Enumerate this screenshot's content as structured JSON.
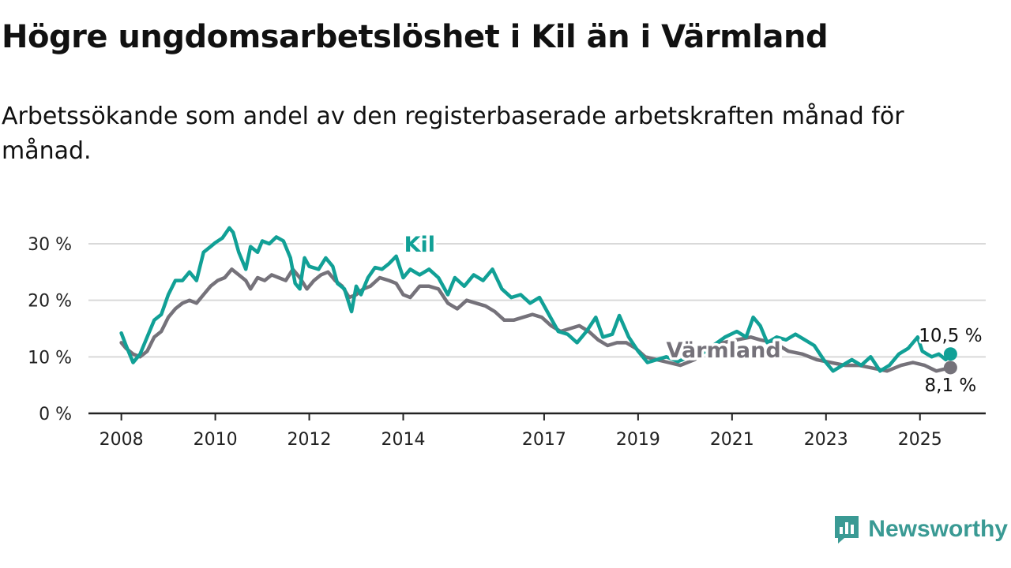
{
  "header": {
    "title": "Högre ungdomsarbetslöshet i Kil än i Värmland",
    "subtitle": "Arbetssökande som andel av den registerbaserade arbetskraften månad för månad."
  },
  "brand": {
    "name": "Newsworthy",
    "icon": "newsworthy-logo-icon",
    "color": "#3a9a94"
  },
  "colors": {
    "kil": "#11a096",
    "varmland": "#75727a",
    "grid": "#d9d9d9",
    "axis": "#222222"
  },
  "chart_data": {
    "type": "line",
    "x_unit": "year",
    "xlim": [
      2007.3,
      2026.4
    ],
    "ylim": [
      0,
      30
    ],
    "yticks": [
      0,
      10,
      20,
      30
    ],
    "ytick_labels": [
      "0 %",
      "10 %",
      "20 %",
      "30 %"
    ],
    "xticks": [
      2008,
      2010,
      2012,
      2014,
      2017,
      2019,
      2021,
      2023,
      2025
    ],
    "xtick_labels": [
      "2008",
      "2010",
      "2012",
      "2014",
      "2017",
      "2019",
      "2021",
      "2023",
      "2025"
    ],
    "grid": true,
    "series": [
      {
        "name": "Kil",
        "end_label": "10,5 %",
        "points": [
          [
            2008.0,
            14.2
          ],
          [
            2008.1,
            12.0
          ],
          [
            2008.25,
            9.0
          ],
          [
            2008.4,
            10.5
          ],
          [
            2008.55,
            13.5
          ],
          [
            2008.7,
            16.5
          ],
          [
            2008.85,
            17.5
          ],
          [
            2009.0,
            21.0
          ],
          [
            2009.15,
            23.5
          ],
          [
            2009.3,
            23.5
          ],
          [
            2009.45,
            25.0
          ],
          [
            2009.6,
            23.5
          ],
          [
            2009.75,
            28.5
          ],
          [
            2009.9,
            29.5
          ],
          [
            2010.0,
            30.2
          ],
          [
            2010.15,
            31.0
          ],
          [
            2010.3,
            32.8
          ],
          [
            2010.38,
            32.0
          ],
          [
            2010.5,
            28.5
          ],
          [
            2010.65,
            25.5
          ],
          [
            2010.75,
            29.5
          ],
          [
            2010.9,
            28.5
          ],
          [
            2011.0,
            30.5
          ],
          [
            2011.15,
            30.0
          ],
          [
            2011.3,
            31.2
          ],
          [
            2011.45,
            30.5
          ],
          [
            2011.6,
            27.5
          ],
          [
            2011.7,
            23.0
          ],
          [
            2011.8,
            22.0
          ],
          [
            2011.9,
            27.5
          ],
          [
            2012.0,
            26.0
          ],
          [
            2012.2,
            25.5
          ],
          [
            2012.35,
            27.5
          ],
          [
            2012.5,
            26.0
          ],
          [
            2012.6,
            23.0
          ],
          [
            2012.75,
            22.0
          ],
          [
            2012.9,
            18.0
          ],
          [
            2013.0,
            22.5
          ],
          [
            2013.1,
            21.0
          ],
          [
            2013.25,
            24.0
          ],
          [
            2013.4,
            25.8
          ],
          [
            2013.55,
            25.5
          ],
          [
            2013.7,
            26.5
          ],
          [
            2013.85,
            27.8
          ],
          [
            2014.0,
            24.0
          ],
          [
            2014.15,
            25.5
          ],
          [
            2014.35,
            24.5
          ],
          [
            2014.55,
            25.5
          ],
          [
            2014.75,
            24.0
          ],
          [
            2014.95,
            21.0
          ],
          [
            2015.1,
            24.0
          ],
          [
            2015.3,
            22.5
          ],
          [
            2015.5,
            24.5
          ],
          [
            2015.7,
            23.5
          ],
          [
            2015.9,
            25.5
          ],
          [
            2016.1,
            22.0
          ],
          [
            2016.3,
            20.5
          ],
          [
            2016.5,
            21.0
          ],
          [
            2016.7,
            19.5
          ],
          [
            2016.9,
            20.5
          ],
          [
            2017.1,
            17.5
          ],
          [
            2017.3,
            14.5
          ],
          [
            2017.5,
            14.0
          ],
          [
            2017.7,
            12.5
          ],
          [
            2017.9,
            14.5
          ],
          [
            2018.1,
            17.0
          ],
          [
            2018.25,
            13.5
          ],
          [
            2018.45,
            14.0
          ],
          [
            2018.6,
            17.3
          ],
          [
            2018.8,
            13.5
          ],
          [
            2019.0,
            11.0
          ],
          [
            2019.2,
            9.0
          ],
          [
            2019.4,
            9.5
          ],
          [
            2019.6,
            10.0
          ],
          [
            2019.85,
            9.2
          ],
          [
            2020.1,
            10.0
          ],
          [
            2020.35,
            10.5
          ],
          [
            2020.6,
            12.0
          ],
          [
            2020.85,
            13.5
          ],
          [
            2021.1,
            14.5
          ],
          [
            2021.3,
            13.5
          ],
          [
            2021.45,
            17.0
          ],
          [
            2021.6,
            15.5
          ],
          [
            2021.75,
            12.5
          ],
          [
            2021.95,
            13.5
          ],
          [
            2022.15,
            13.0
          ],
          [
            2022.35,
            14.0
          ],
          [
            2022.55,
            13.0
          ],
          [
            2022.75,
            12.0
          ],
          [
            2022.95,
            9.5
          ],
          [
            2023.15,
            7.5
          ],
          [
            2023.35,
            8.5
          ],
          [
            2023.55,
            9.5
          ],
          [
            2023.75,
            8.5
          ],
          [
            2023.95,
            10.0
          ],
          [
            2024.15,
            7.5
          ],
          [
            2024.35,
            8.5
          ],
          [
            2024.55,
            10.5
          ],
          [
            2024.75,
            11.5
          ],
          [
            2024.95,
            13.5
          ],
          [
            2025.05,
            11.0
          ],
          [
            2025.25,
            10.0
          ],
          [
            2025.4,
            10.5
          ],
          [
            2025.55,
            9.5
          ],
          [
            2025.65,
            10.5
          ]
        ]
      },
      {
        "name": "Värmland",
        "end_label": "8,1 %",
        "points": [
          [
            2008.0,
            12.5
          ],
          [
            2008.1,
            11.5
          ],
          [
            2008.25,
            10.5
          ],
          [
            2008.4,
            10.0
          ],
          [
            2008.55,
            11.0
          ],
          [
            2008.7,
            13.5
          ],
          [
            2008.85,
            14.5
          ],
          [
            2009.0,
            17.0
          ],
          [
            2009.15,
            18.5
          ],
          [
            2009.3,
            19.5
          ],
          [
            2009.45,
            20.0
          ],
          [
            2009.6,
            19.5
          ],
          [
            2009.75,
            21.0
          ],
          [
            2009.9,
            22.5
          ],
          [
            2010.05,
            23.5
          ],
          [
            2010.2,
            24.0
          ],
          [
            2010.35,
            25.5
          ],
          [
            2010.5,
            24.5
          ],
          [
            2010.65,
            23.5
          ],
          [
            2010.75,
            22.0
          ],
          [
            2010.9,
            24.0
          ],
          [
            2011.05,
            23.5
          ],
          [
            2011.2,
            24.5
          ],
          [
            2011.35,
            24.0
          ],
          [
            2011.5,
            23.5
          ],
          [
            2011.65,
            25.5
          ],
          [
            2011.8,
            24.0
          ],
          [
            2011.95,
            22.0
          ],
          [
            2012.1,
            23.5
          ],
          [
            2012.25,
            24.5
          ],
          [
            2012.4,
            25.0
          ],
          [
            2012.55,
            23.5
          ],
          [
            2012.7,
            22.5
          ],
          [
            2012.85,
            20.5
          ],
          [
            2013.0,
            21.0
          ],
          [
            2013.15,
            22.0
          ],
          [
            2013.3,
            22.5
          ],
          [
            2013.5,
            24.0
          ],
          [
            2013.7,
            23.5
          ],
          [
            2013.85,
            23.0
          ],
          [
            2014.0,
            21.0
          ],
          [
            2014.15,
            20.5
          ],
          [
            2014.35,
            22.5
          ],
          [
            2014.55,
            22.5
          ],
          [
            2014.75,
            22.0
          ],
          [
            2014.95,
            19.5
          ],
          [
            2015.15,
            18.5
          ],
          [
            2015.35,
            20.0
          ],
          [
            2015.55,
            19.5
          ],
          [
            2015.75,
            19.0
          ],
          [
            2015.95,
            18.0
          ],
          [
            2016.15,
            16.5
          ],
          [
            2016.35,
            16.5
          ],
          [
            2016.55,
            17.0
          ],
          [
            2016.75,
            17.5
          ],
          [
            2016.95,
            17.0
          ],
          [
            2017.15,
            15.5
          ],
          [
            2017.35,
            14.5
          ],
          [
            2017.55,
            15.0
          ],
          [
            2017.75,
            15.5
          ],
          [
            2017.95,
            14.5
          ],
          [
            2018.15,
            13.0
          ],
          [
            2018.35,
            12.0
          ],
          [
            2018.55,
            12.5
          ],
          [
            2018.75,
            12.5
          ],
          [
            2018.95,
            11.5
          ],
          [
            2019.15,
            10.0
          ],
          [
            2019.4,
            9.5
          ],
          [
            2019.65,
            9.0
          ],
          [
            2019.9,
            8.5
          ],
          [
            2020.2,
            9.5
          ],
          [
            2020.5,
            11.5
          ],
          [
            2020.8,
            12.5
          ],
          [
            2021.1,
            13.0
          ],
          [
            2021.4,
            13.5
          ],
          [
            2021.6,
            13.0
          ],
          [
            2021.9,
            12.5
          ],
          [
            2022.2,
            11.0
          ],
          [
            2022.5,
            10.5
          ],
          [
            2022.8,
            9.5
          ],
          [
            2023.1,
            9.0
          ],
          [
            2023.4,
            8.5
          ],
          [
            2023.7,
            8.5
          ],
          [
            2024.0,
            8.0
          ],
          [
            2024.3,
            7.5
          ],
          [
            2024.6,
            8.5
          ],
          [
            2024.85,
            9.0
          ],
          [
            2025.1,
            8.5
          ],
          [
            2025.35,
            7.5
          ],
          [
            2025.65,
            8.1
          ]
        ]
      }
    ],
    "annotations": [
      {
        "text": "Kil",
        "series": "Kil",
        "x": 2013.85,
        "y": 27.8
      },
      {
        "text": "Värmland",
        "series": "Värmland",
        "x": 2019.6,
        "y": 10.5
      }
    ]
  }
}
